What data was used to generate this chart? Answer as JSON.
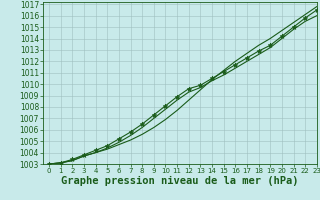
{
  "title": "Graphe pression niveau de la mer (hPa)",
  "bg_color": "#c8eaea",
  "grid_color": "#9fbfbf",
  "line_color": "#1a5c1a",
  "xlim": [
    -0.5,
    23
  ],
  "ylim": [
    1003,
    1017.2
  ],
  "yticks": [
    1003,
    1004,
    1005,
    1006,
    1007,
    1008,
    1009,
    1010,
    1011,
    1012,
    1013,
    1014,
    1015,
    1016,
    1017
  ],
  "xticks": [
    0,
    1,
    2,
    3,
    4,
    5,
    6,
    7,
    8,
    9,
    10,
    11,
    12,
    13,
    14,
    15,
    16,
    17,
    18,
    19,
    20,
    21,
    22,
    23
  ],
  "series_upper": [
    1003.0,
    1003.1,
    1003.3,
    1003.7,
    1004.0,
    1004.3,
    1004.7,
    1005.1,
    1005.6,
    1006.2,
    1006.9,
    1007.7,
    1008.6,
    1009.5,
    1010.4,
    1011.2,
    1012.0,
    1012.7,
    1013.4,
    1014.0,
    1014.7,
    1015.4,
    1016.1,
    1016.8
  ],
  "series_marked": [
    1003.0,
    1003.1,
    1003.4,
    1003.8,
    1004.2,
    1004.6,
    1005.2,
    1005.8,
    1006.5,
    1007.3,
    1008.1,
    1008.9,
    1009.6,
    1009.9,
    1010.5,
    1011.1,
    1011.7,
    1012.3,
    1012.9,
    1013.4,
    1014.2,
    1015.0,
    1015.8,
    1016.5
  ],
  "series_lower": [
    1003.0,
    1003.1,
    1003.3,
    1003.7,
    1004.0,
    1004.4,
    1004.9,
    1005.5,
    1006.2,
    1007.0,
    1007.8,
    1008.6,
    1009.3,
    1009.7,
    1010.3,
    1010.8,
    1011.4,
    1012.0,
    1012.6,
    1013.2,
    1014.0,
    1014.8,
    1015.5,
    1016.0
  ],
  "tick_fontsize": 5.5,
  "xlabel_fontsize": 7.5
}
